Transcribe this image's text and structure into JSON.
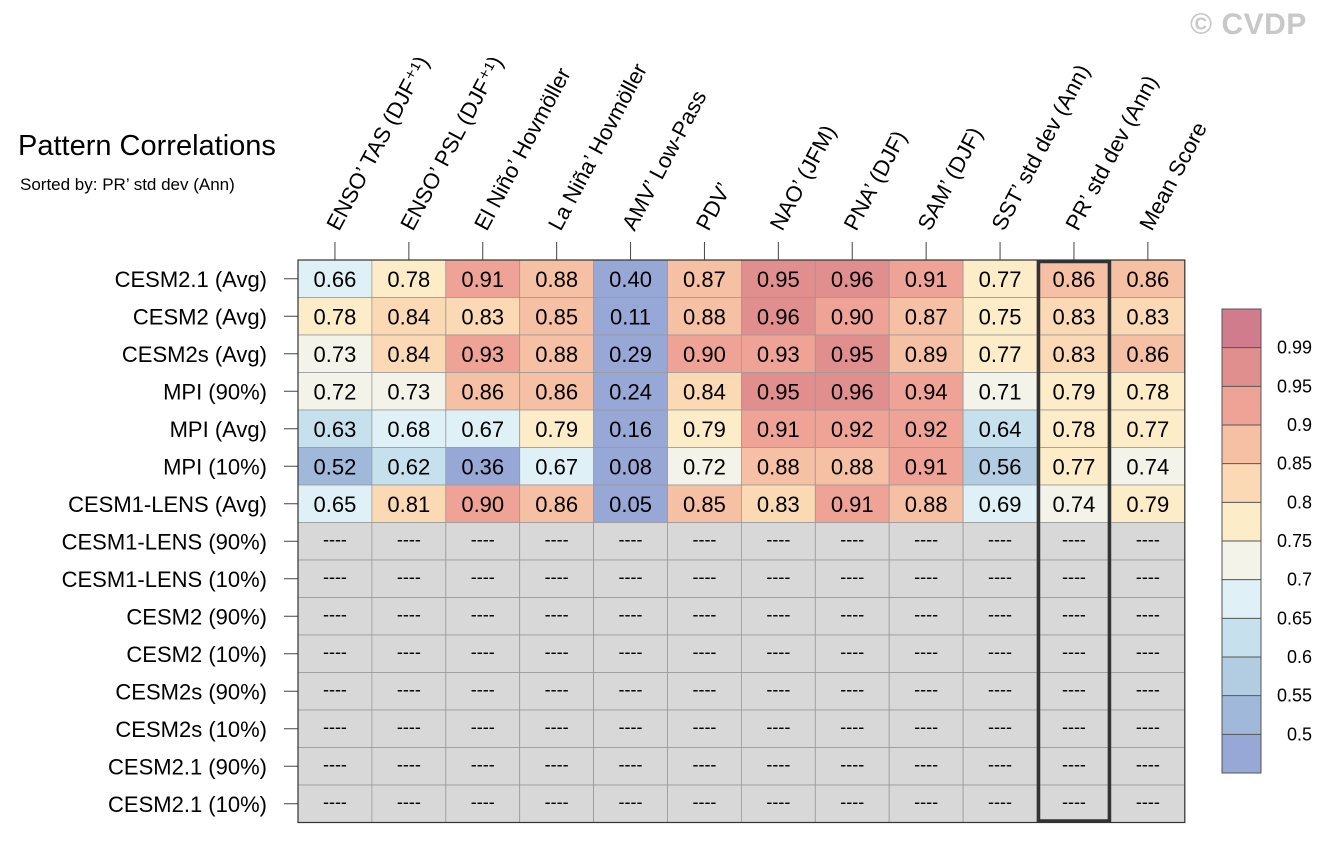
{
  "watermark": "© CVDP",
  "chart_data": {
    "type": "heatmap",
    "title": "Pattern Correlations",
    "subtitle": "Sorted by: PR’ std dev (Ann)",
    "columns": [
      "ENSO’ TAS (DJF⁺¹)",
      "ENSO’ PSL (DJF⁺¹)",
      "El Niño’ Hovmöller",
      "La Niña’ Hovmöller",
      "AMV’ Low-Pass",
      "PDV’",
      "NAO’ (JFM)",
      "PNA’ (DJF)",
      "SAM’ (DJF)",
      "SST’ std dev (Ann)",
      "PR’ std dev (Ann)",
      "Mean Score"
    ],
    "rows": [
      "CESM2.1 (Avg)",
      "CESM2 (Avg)",
      "CESM2s (Avg)",
      "MPI (90%)",
      "MPI (Avg)",
      "MPI (10%)",
      "CESM1-LENS (Avg)",
      "CESM1-LENS (90%)",
      "CESM1-LENS (10%)",
      "CESM2 (90%)",
      "CESM2 (10%)",
      "CESM2s (90%)",
      "CESM2s (10%)",
      "CESM2.1 (90%)",
      "CESM2.1 (10%)"
    ],
    "values": [
      [
        "0.66",
        "0.78",
        "0.91",
        "0.88",
        "0.40",
        "0.87",
        "0.95",
        "0.96",
        "0.91",
        "0.77",
        "0.86",
        "0.86"
      ],
      [
        "0.78",
        "0.84",
        "0.83",
        "0.85",
        "0.11",
        "0.88",
        "0.96",
        "0.90",
        "0.87",
        "0.75",
        "0.83",
        "0.83"
      ],
      [
        "0.73",
        "0.84",
        "0.93",
        "0.88",
        "0.29",
        "0.90",
        "0.93",
        "0.95",
        "0.89",
        "0.77",
        "0.83",
        "0.86"
      ],
      [
        "0.72",
        "0.73",
        "0.86",
        "0.86",
        "0.24",
        "0.84",
        "0.95",
        "0.96",
        "0.94",
        "0.71",
        "0.79",
        "0.78"
      ],
      [
        "0.63",
        "0.68",
        "0.67",
        "0.79",
        "0.16",
        "0.79",
        "0.91",
        "0.92",
        "0.92",
        "0.64",
        "0.78",
        "0.77"
      ],
      [
        "0.52",
        "0.62",
        "0.36",
        "0.67",
        "0.08",
        "0.72",
        "0.88",
        "0.88",
        "0.91",
        "0.56",
        "0.77",
        "0.74"
      ],
      [
        "0.65",
        "0.81",
        "0.90",
        "0.86",
        "0.05",
        "0.85",
        "0.83",
        "0.91",
        "0.88",
        "0.69",
        "0.74",
        "0.79"
      ],
      [
        "----",
        "----",
        "----",
        "----",
        "----",
        "----",
        "----",
        "----",
        "----",
        "----",
        "----",
        "----"
      ],
      [
        "----",
        "----",
        "----",
        "----",
        "----",
        "----",
        "----",
        "----",
        "----",
        "----",
        "----",
        "----"
      ],
      [
        "----",
        "----",
        "----",
        "----",
        "----",
        "----",
        "----",
        "----",
        "----",
        "----",
        "----",
        "----"
      ],
      [
        "----",
        "----",
        "----",
        "----",
        "----",
        "----",
        "----",
        "----",
        "----",
        "----",
        "----",
        "----"
      ],
      [
        "----",
        "----",
        "----",
        "----",
        "----",
        "----",
        "----",
        "----",
        "----",
        "----",
        "----",
        "----"
      ],
      [
        "----",
        "----",
        "----",
        "----",
        "----",
        "----",
        "----",
        "----",
        "----",
        "----",
        "----",
        "----"
      ],
      [
        "----",
        "----",
        "----",
        "----",
        "----",
        "----",
        "----",
        "----",
        "----",
        "----",
        "----",
        "----"
      ],
      [
        "----",
        "----",
        "----",
        "----",
        "----",
        "----",
        "----",
        "----",
        "----",
        "----",
        "----",
        "----"
      ]
    ],
    "missing_value": "----",
    "highlighted_column": "PR’ std dev (Ann)",
    "colorbar": {
      "labels": [
        "0.99",
        "0.95",
        "0.9",
        "0.85",
        "0.8",
        "0.75",
        "0.7",
        "0.65",
        "0.6",
        "0.55",
        "0.5"
      ],
      "colors": [
        "#d17c8c",
        "#e08e8e",
        "#eea396",
        "#f6c0a4",
        "#fbd9b4",
        "#fcecc7",
        "#f3f3ea",
        "#dff0f6",
        "#c6e0ee",
        "#b2cde2",
        "#a0b8da",
        "#98a8d6"
      ]
    },
    "missing_color": "#d8d8d8",
    "grid": true
  }
}
